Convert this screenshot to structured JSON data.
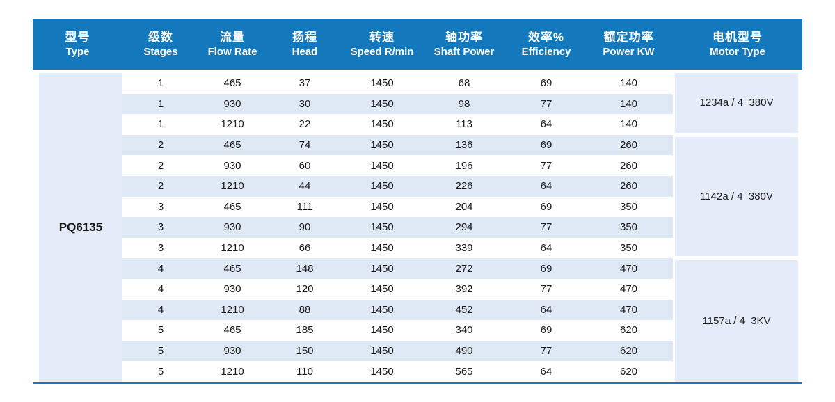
{
  "table": {
    "columns": [
      {
        "zh": "型号",
        "en": "Type"
      },
      {
        "zh": "级数",
        "en": "Stages"
      },
      {
        "zh": "流量",
        "en": "Flow Rate"
      },
      {
        "zh": "扬程",
        "en": "Head"
      },
      {
        "zh": "转速",
        "en": "Speed R/min"
      },
      {
        "zh": "轴功率",
        "en": "Shaft Power"
      },
      {
        "zh": "效率%",
        "en": "Efficiency"
      },
      {
        "zh": "额定功率",
        "en": "Power KW"
      },
      {
        "zh": "电机型号",
        "en": "Motor Type"
      }
    ],
    "type_value": "PQ6135",
    "rows": [
      {
        "stages": "1",
        "flow": "465",
        "head": "37",
        "speed": "1450",
        "shaft": "68",
        "eff": "69",
        "power": "140"
      },
      {
        "stages": "1",
        "flow": "930",
        "head": "30",
        "speed": "1450",
        "shaft": "98",
        "eff": "77",
        "power": "140"
      },
      {
        "stages": "1",
        "flow": "1210",
        "head": "22",
        "speed": "1450",
        "shaft": "113",
        "eff": "64",
        "power": "140"
      },
      {
        "stages": "2",
        "flow": "465",
        "head": "74",
        "speed": "1450",
        "shaft": "136",
        "eff": "69",
        "power": "260"
      },
      {
        "stages": "2",
        "flow": "930",
        "head": "60",
        "speed": "1450",
        "shaft": "196",
        "eff": "77",
        "power": "260"
      },
      {
        "stages": "2",
        "flow": "1210",
        "head": "44",
        "speed": "1450",
        "shaft": "226",
        "eff": "64",
        "power": "260"
      },
      {
        "stages": "3",
        "flow": "465",
        "head": "111",
        "speed": "1450",
        "shaft": "204",
        "eff": "69",
        "power": "350"
      },
      {
        "stages": "3",
        "flow": "930",
        "head": "90",
        "speed": "1450",
        "shaft": "294",
        "eff": "77",
        "power": "350"
      },
      {
        "stages": "3",
        "flow": "1210",
        "head": "66",
        "speed": "1450",
        "shaft": "339",
        "eff": "64",
        "power": "350"
      },
      {
        "stages": "4",
        "flow": "465",
        "head": "148",
        "speed": "1450",
        "shaft": "272",
        "eff": "69",
        "power": "470"
      },
      {
        "stages": "4",
        "flow": "930",
        "head": "120",
        "speed": "1450",
        "shaft": "392",
        "eff": "77",
        "power": "470"
      },
      {
        "stages": "4",
        "flow": "1210",
        "head": "88",
        "speed": "1450",
        "shaft": "452",
        "eff": "64",
        "power": "470"
      },
      {
        "stages": "5",
        "flow": "465",
        "head": "185",
        "speed": "1450",
        "shaft": "340",
        "eff": "69",
        "power": "620"
      },
      {
        "stages": "5",
        "flow": "930",
        "head": "150",
        "speed": "1450",
        "shaft": "490",
        "eff": "77",
        "power": "620"
      },
      {
        "stages": "5",
        "flow": "1210",
        "head": "110",
        "speed": "1450",
        "shaft": "565",
        "eff": "64",
        "power": "620"
      }
    ],
    "motor_groups": [
      {
        "label": "1234a / 4  380V",
        "row_span": 3
      },
      {
        "label": "1142a / 4  380V",
        "row_span": 6
      },
      {
        "label": "1157a / 4  3KV",
        "row_span": 6
      }
    ],
    "colors": {
      "header_blue": "#1478bd",
      "stripe_blue": "#dfe9f5",
      "group_cell_blue": "#e3ecf8",
      "bottom_border_blue": "#1478bd",
      "body_text": "#1a1a1a",
      "header_text": "#ffffff"
    }
  }
}
